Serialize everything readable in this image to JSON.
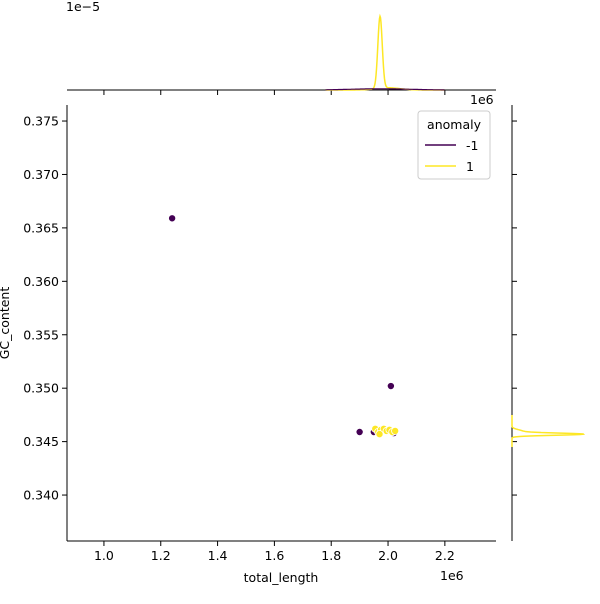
{
  "chart_data": {
    "type": "scatter",
    "x_label": "total_length",
    "y_label": "GC_content",
    "x_offset_label": "1e6",
    "y_offset_label": "",
    "top_marginal_offset_label": "1e−5",
    "right_marginal_offset_label": "1e6",
    "xlim": [
      0.87,
      2.38
    ],
    "ylim": [
      0.3357,
      0.3765
    ],
    "x_ticks": [
      1.0,
      1.2,
      1.4,
      1.6,
      1.8,
      2.0,
      2.2
    ],
    "x_tick_labels": [
      "1.0",
      "1.2",
      "1.4",
      "1.6",
      "1.8",
      "2.0",
      "2.2"
    ],
    "y_ticks": [
      0.34,
      0.345,
      0.35,
      0.355,
      0.36,
      0.365,
      0.37,
      0.375
    ],
    "y_tick_labels": [
      "0.340",
      "0.345",
      "0.350",
      "0.355",
      "0.360",
      "0.365",
      "0.370",
      "0.375"
    ],
    "grid": false,
    "legend": {
      "title": "anomaly",
      "placement": "top-right",
      "entries": [
        {
          "label": "-1",
          "color": "#440154"
        },
        {
          "label": "1",
          "color": "#fde725"
        }
      ]
    },
    "series": [
      {
        "name": "-1",
        "color": "#440154",
        "points": [
          {
            "x": 1.24,
            "y": 0.3659
          },
          {
            "x": 2.01,
            "y": 0.3502
          },
          {
            "x": 1.9,
            "y": 0.3459
          },
          {
            "x": 1.95,
            "y": 0.3459
          },
          {
            "x": 2.0,
            "y": 0.346
          },
          {
            "x": 2.02,
            "y": 0.3458
          }
        ]
      },
      {
        "name": "1",
        "color": "#fde725",
        "points": [
          {
            "x": 1.955,
            "y": 0.3462
          },
          {
            "x": 1.965,
            "y": 0.3459
          },
          {
            "x": 1.975,
            "y": 0.3461
          },
          {
            "x": 1.985,
            "y": 0.3462
          },
          {
            "x": 1.995,
            "y": 0.346
          },
          {
            "x": 2.005,
            "y": 0.3461
          },
          {
            "x": 2.015,
            "y": 0.3459
          },
          {
            "x": 2.025,
            "y": 0.346
          },
          {
            "x": 1.97,
            "y": 0.3457
          }
        ]
      }
    ],
    "top_marginal": {
      "description": "KDE of total_length per anomaly class",
      "peak_x": 1.972,
      "x_range": [
        1.95,
        2.0
      ]
    },
    "right_marginal": {
      "description": "KDE of GC_content per anomaly class",
      "peak_y": 0.3457
    }
  }
}
